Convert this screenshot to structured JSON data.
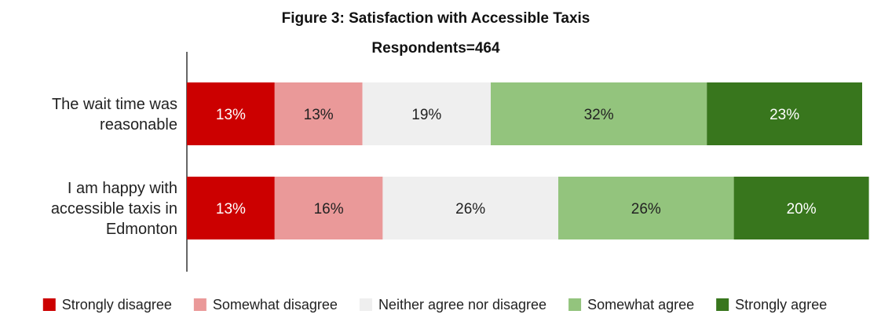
{
  "chart_data": {
    "type": "bar",
    "orientation": "horizontal",
    "stacked": true,
    "title": "Figure 3: Satisfaction with Accessible Taxis",
    "subtitle": "Respondents=464",
    "xlabel": "",
    "ylabel": "",
    "xlim": [
      0,
      100
    ],
    "grid": false,
    "legend_position": "bottom",
    "categories": [
      [
        "The wait time was",
        "reasonable"
      ],
      [
        "I am happy with",
        "accessible taxis in",
        "Edmonton"
      ]
    ],
    "series": [
      {
        "name": "Strongly disagree",
        "color": "#cc0000",
        "label_color": "#ffffff",
        "values": [
          13,
          13
        ],
        "labels": [
          "13%",
          "13%"
        ]
      },
      {
        "name": "Somewhat disagree",
        "color": "#ea9999",
        "label_color": "#222222",
        "values": [
          13,
          16
        ],
        "labels": [
          "13%",
          "16%"
        ]
      },
      {
        "name": "Neither agree nor disagree",
        "color": "#efefef",
        "label_color": "#222222",
        "values": [
          19,
          26
        ],
        "labels": [
          "19%",
          "26%"
        ]
      },
      {
        "name": "Somewhat agree",
        "color": "#93c47d",
        "label_color": "#222222",
        "values": [
          32,
          26
        ],
        "labels": [
          "32%",
          "26%"
        ]
      },
      {
        "name": "Strongly agree",
        "color": "#38761d",
        "label_color": "#ffffff",
        "values": [
          23,
          20
        ],
        "labels": [
          "23%",
          "20%"
        ]
      }
    ]
  }
}
